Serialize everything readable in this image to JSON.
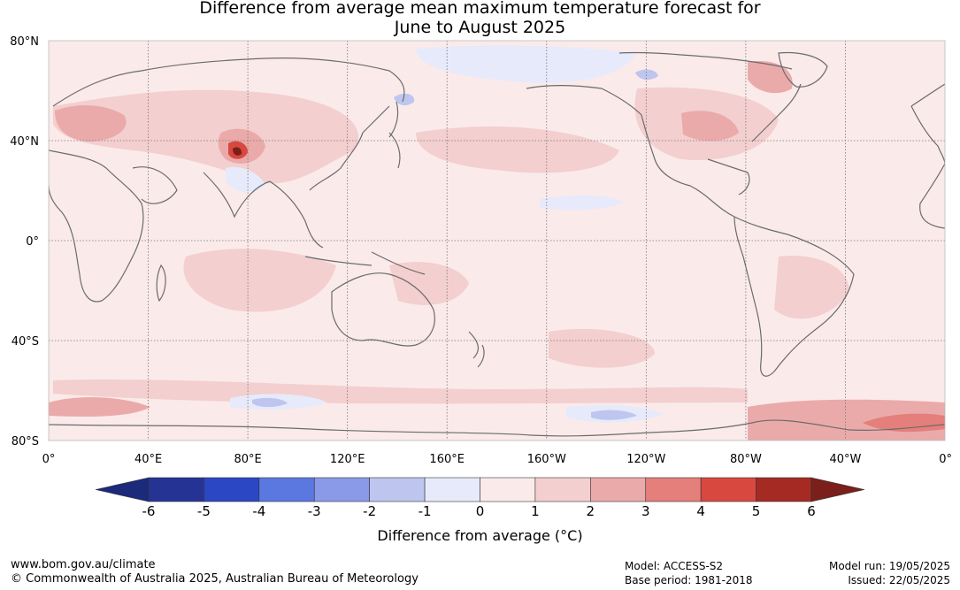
{
  "title": {
    "line1": "Difference from average mean maximum temperature forecast for",
    "line2": "June to August 2025"
  },
  "map": {
    "projection": "equirectangular",
    "lon_labels": [
      "0°",
      "40°E",
      "80°E",
      "120°E",
      "160°E",
      "160°W",
      "120°W",
      "80°W",
      "40°W",
      "0°"
    ],
    "lat_labels": [
      "80°N",
      "40°N",
      "0°",
      "40°S",
      "80°S"
    ],
    "background_color": "#fbeaea",
    "coastline_color": "#6b6b6b"
  },
  "colorbar": {
    "ticks": [
      "-6",
      "-5",
      "-4",
      "-3",
      "-2",
      "-1",
      "0",
      "1",
      "2",
      "3",
      "4",
      "5",
      "6"
    ],
    "colors": [
      "#253494",
      "#2b47c4",
      "#5b78e0",
      "#8a9ae8",
      "#bec6ef",
      "#e7eafa",
      "#fbeaea",
      "#f3cfcf",
      "#ebaaaa",
      "#e47f7b",
      "#d8483f",
      "#a52a23"
    ],
    "under_color": "#1b2a7a",
    "over_color": "#7a1f1a",
    "label": "Difference from average (°C)"
  },
  "footer": {
    "website": "www.bom.gov.au/climate",
    "copyright": "© Commonwealth of Australia 2025, Australian Bureau of Meteorology",
    "model": "Model: ACCESS-S2",
    "base_period": "Base period: 1981-2018",
    "model_run": "Model run: 19/05/2025",
    "issued": "Issued: 22/05/2025"
  }
}
